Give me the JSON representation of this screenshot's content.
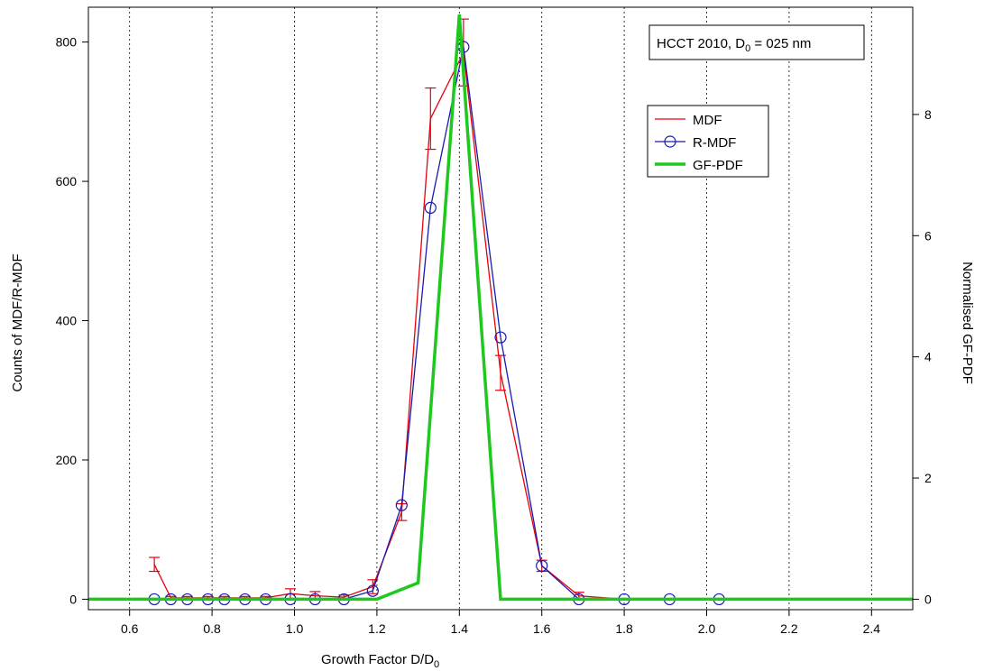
{
  "chart_data": {
    "type": "line",
    "title": "",
    "annotation": {
      "text_main": "HCCT 2010, D",
      "text_sub": "0",
      "text_rest": " = 025 nm"
    },
    "xlabel": {
      "main": "Growth Factor D/D",
      "sub": "0"
    },
    "ylabel": "Counts of MDF/R-MDF",
    "y2label": "Normalised GF-PDF",
    "xlim": [
      0.5,
      2.5
    ],
    "ylim": [
      -15,
      850
    ],
    "y2lim": [
      -0.1724,
      9.77
    ],
    "x_ticks": [
      "0.6",
      "0.8",
      "1.0",
      "1.2",
      "1.4",
      "1.6",
      "1.8",
      "2.0",
      "2.2",
      "2.4"
    ],
    "x_tick_values": [
      0.6,
      0.8,
      1.0,
      1.2,
      1.4,
      1.6,
      1.8,
      2.0,
      2.2,
      2.4
    ],
    "y_ticks": [
      "0",
      "200",
      "400",
      "600",
      "800"
    ],
    "y_tick_values": [
      0,
      200,
      400,
      600,
      800
    ],
    "y2_ticks": [
      "0",
      "2",
      "4",
      "6",
      "8"
    ],
    "y2_tick_values": [
      0,
      2,
      4,
      6,
      8
    ],
    "grid": {
      "x": true,
      "y": false,
      "style": "dotted"
    },
    "legend_position": "top-right",
    "series": [
      {
        "name": "MDF",
        "axis": "left",
        "color": "#e8000b",
        "marker": "none",
        "x": [
          0.66,
          0.7,
          0.74,
          0.79,
          0.83,
          0.88,
          0.93,
          0.99,
          1.05,
          1.12,
          1.19,
          1.26,
          1.33,
          1.41,
          1.5,
          1.6,
          1.69,
          1.8,
          1.91,
          2.03
        ],
        "values": [
          50,
          2,
          2,
          2,
          2,
          2,
          2,
          8,
          5,
          3,
          18,
          125,
          690,
          785,
          325,
          48,
          5,
          0,
          0,
          0
        ],
        "errors": [
          10,
          2,
          2,
          2,
          2,
          2,
          2,
          7,
          6,
          3,
          10,
          12,
          44,
          48,
          25,
          8,
          5,
          1,
          1,
          1
        ]
      },
      {
        "name": "R-MDF",
        "axis": "left",
        "color": "#1a1ab0",
        "marker": "circle",
        "x": [
          0.66,
          0.7,
          0.74,
          0.79,
          0.83,
          0.88,
          0.93,
          0.99,
          1.05,
          1.12,
          1.19,
          1.26,
          1.33,
          1.41,
          1.5,
          1.6,
          1.69,
          1.8,
          1.91,
          2.03
        ],
        "values": [
          0,
          0,
          0,
          0,
          0,
          0,
          0,
          0,
          0,
          0,
          12,
          135,
          562,
          793,
          376,
          48,
          0,
          0,
          0,
          0
        ]
      },
      {
        "name": "GF-PDF",
        "axis": "right",
        "color": "#1ec81e",
        "marker": "none",
        "x": [
          0.5,
          1.2,
          1.3,
          1.4,
          1.5,
          2.5
        ],
        "values": [
          0,
          0,
          0.27,
          9.65,
          0,
          0
        ]
      }
    ]
  }
}
